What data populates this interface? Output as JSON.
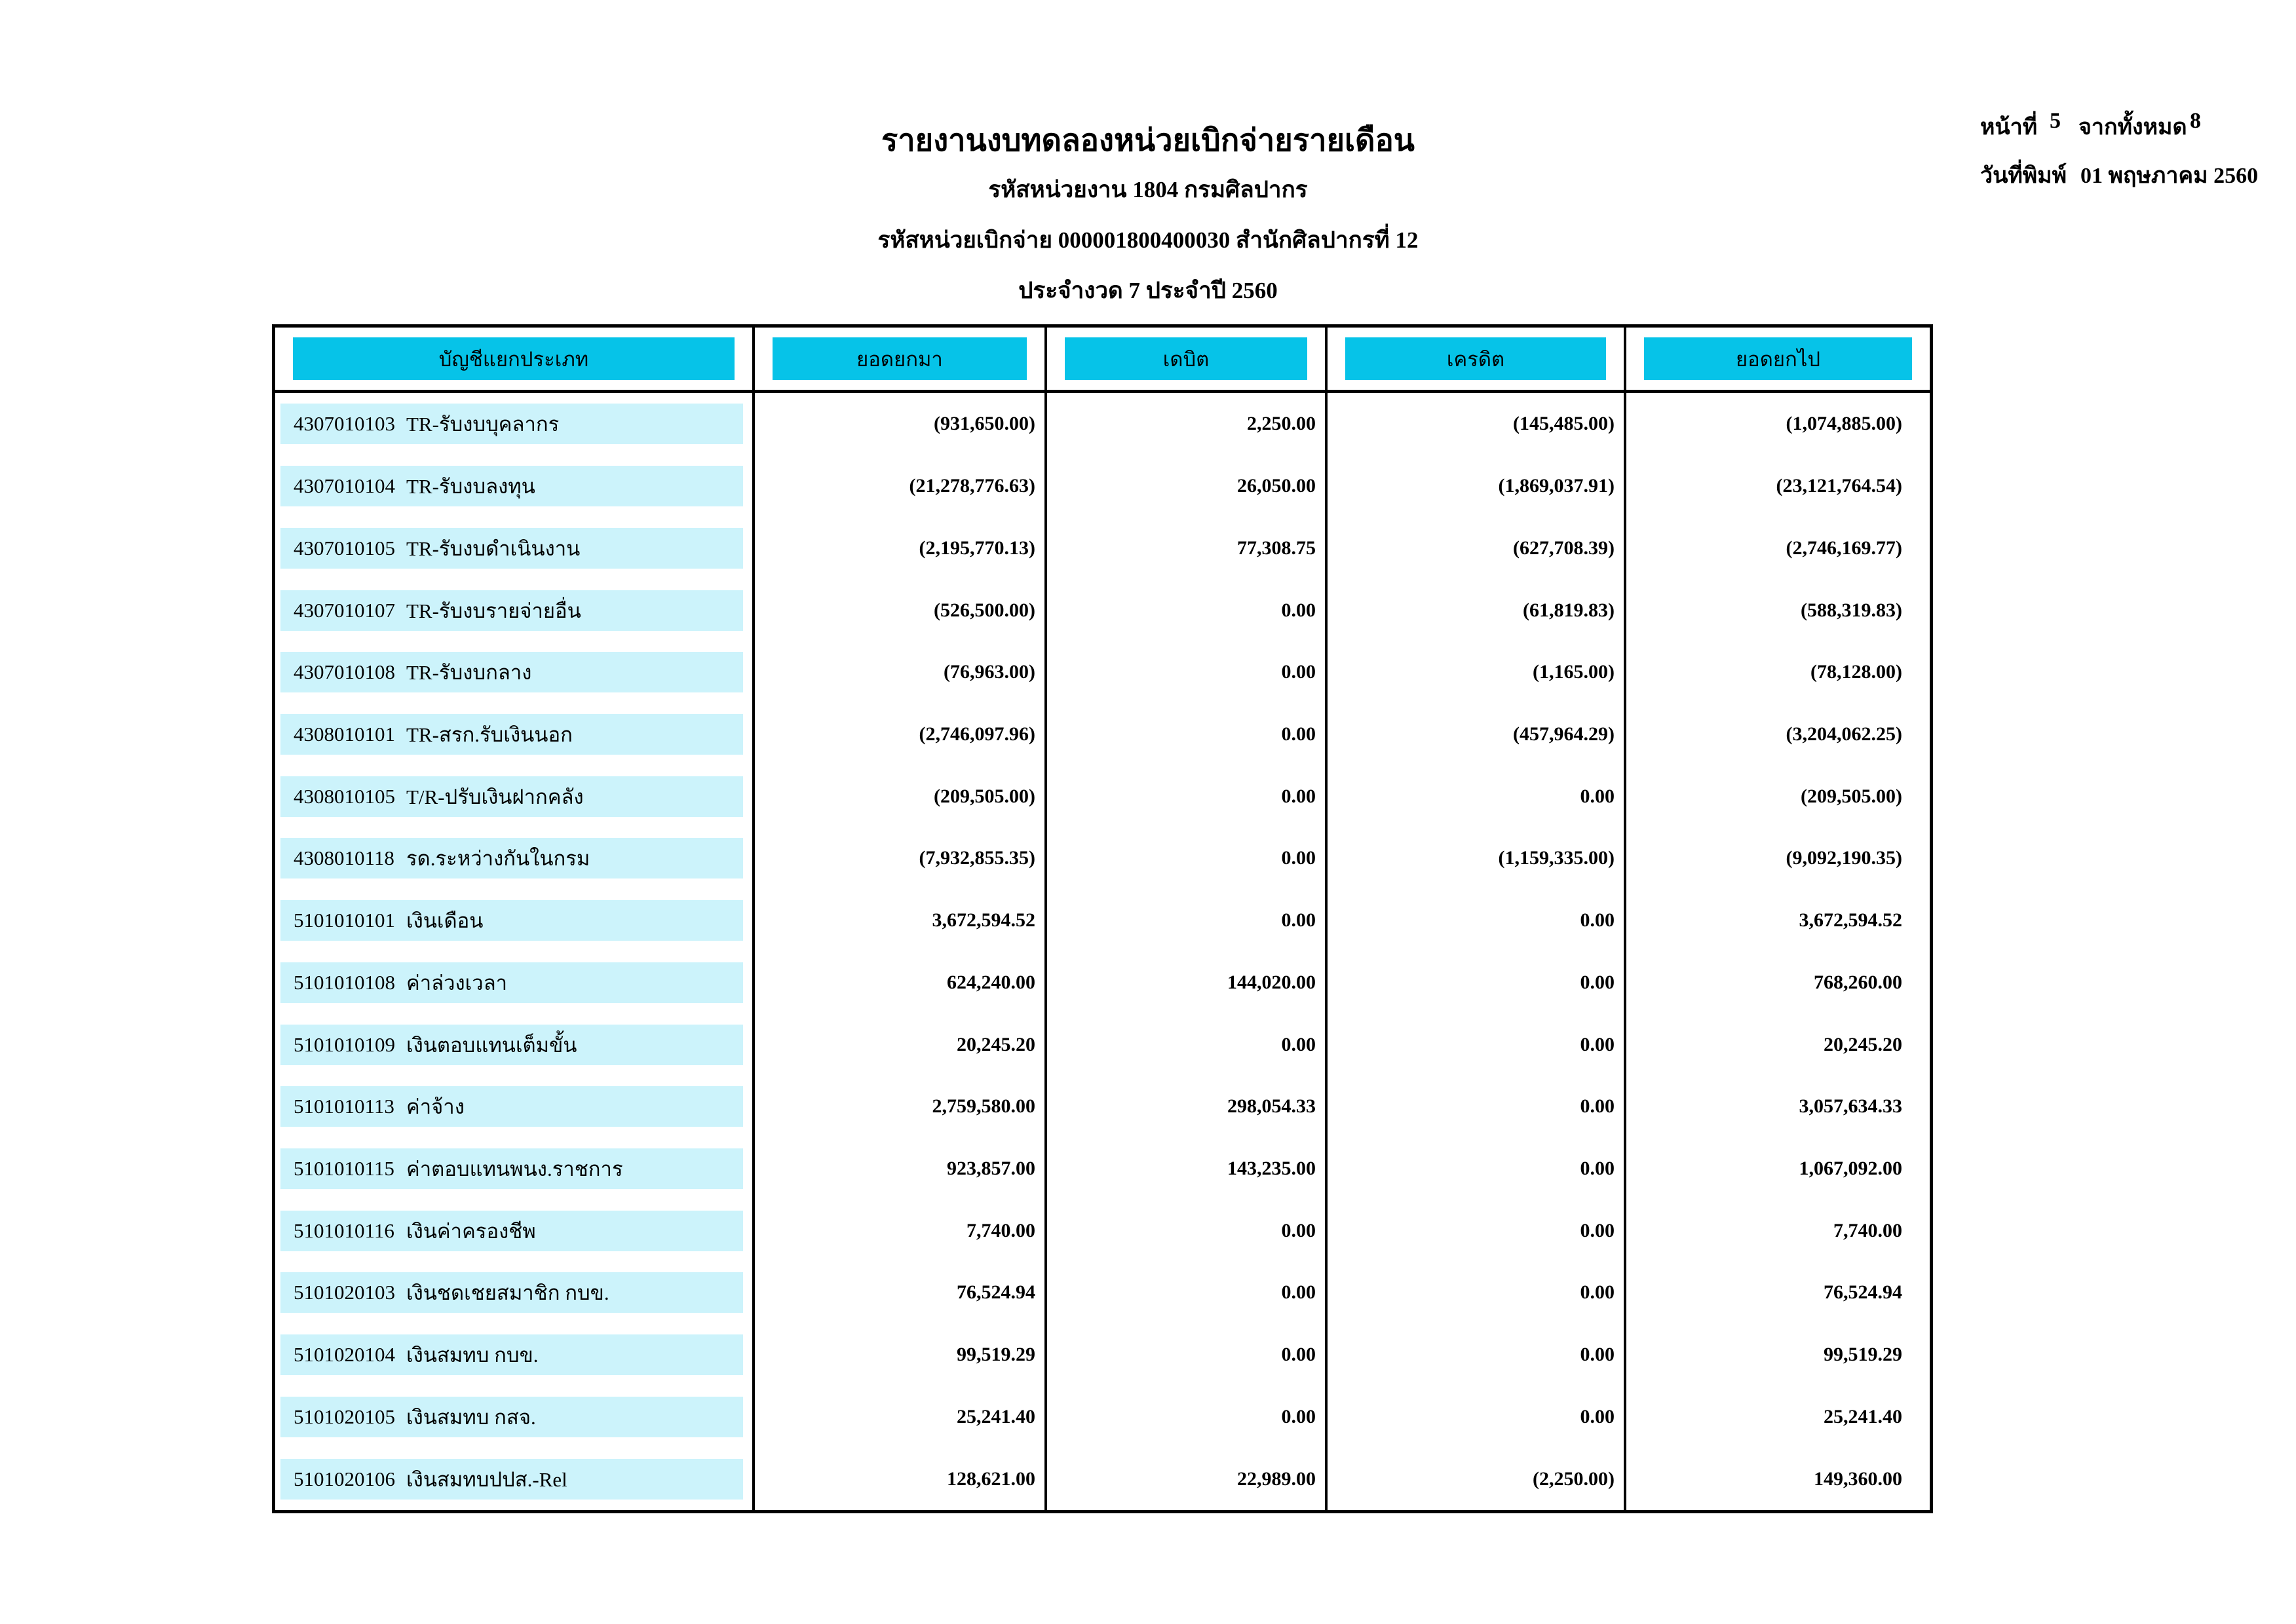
{
  "header": {
    "title": "รายงานงบทดลองหน่วยเบิกจ่ายรายเดือน",
    "agency_line": "รหัสหน่วยงาน 1804 กรมศิลปากร",
    "disbursement_line": "รหัสหน่วยเบิกจ่าย 000001800400030 สำนักศิลปากรที่ 12",
    "period_line": "ประจำงวด 7 ประจำปี 2560"
  },
  "page_info": {
    "page_label": "หน้าที่",
    "page_number": "5",
    "total_label": "จากทั้งหมด",
    "total_pages": "8",
    "print_date_label": "วันที่พิมพ์",
    "print_date": "01 พฤษภาคม 2560"
  },
  "table": {
    "columns": [
      "บัญชีแยกประเภท",
      "ยอดยกมา",
      "เดบิต",
      "เครดิต",
      "ยอดยกไป"
    ],
    "rows": [
      {
        "code": "4307010103",
        "name": "TR-รับงบบุคลากร",
        "opening": "(931,650.00)",
        "debit": "2,250.00",
        "credit": "(145,485.00)",
        "closing": "(1,074,885.00)"
      },
      {
        "code": "4307010104",
        "name": "TR-รับงบลงทุน",
        "opening": "(21,278,776.63)",
        "debit": "26,050.00",
        "credit": "(1,869,037.91)",
        "closing": "(23,121,764.54)"
      },
      {
        "code": "4307010105",
        "name": "TR-รับงบดำเนินงาน",
        "opening": "(2,195,770.13)",
        "debit": "77,308.75",
        "credit": "(627,708.39)",
        "closing": "(2,746,169.77)"
      },
      {
        "code": "4307010107",
        "name": "TR-รับงบรายจ่ายอื่น",
        "opening": "(526,500.00)",
        "debit": "0.00",
        "credit": "(61,819.83)",
        "closing": "(588,319.83)"
      },
      {
        "code": "4307010108",
        "name": "TR-รับงบกลาง",
        "opening": "(76,963.00)",
        "debit": "0.00",
        "credit": "(1,165.00)",
        "closing": "(78,128.00)"
      },
      {
        "code": "4308010101",
        "name": "TR-สรก.รับเงินนอก",
        "opening": "(2,746,097.96)",
        "debit": "0.00",
        "credit": "(457,964.29)",
        "closing": "(3,204,062.25)"
      },
      {
        "code": "4308010105",
        "name": "T/R-ปรับเงินฝากคลัง",
        "opening": "(209,505.00)",
        "debit": "0.00",
        "credit": "0.00",
        "closing": "(209,505.00)"
      },
      {
        "code": "4308010118",
        "name": "รด.ระหว่างกันในกรม",
        "opening": "(7,932,855.35)",
        "debit": "0.00",
        "credit": "(1,159,335.00)",
        "closing": "(9,092,190.35)"
      },
      {
        "code": "5101010101",
        "name": "เงินเดือน",
        "opening": "3,672,594.52",
        "debit": "0.00",
        "credit": "0.00",
        "closing": "3,672,594.52"
      },
      {
        "code": "5101010108",
        "name": "ค่าล่วงเวลา",
        "opening": "624,240.00",
        "debit": "144,020.00",
        "credit": "0.00",
        "closing": "768,260.00"
      },
      {
        "code": "5101010109",
        "name": "เงินตอบแทนเต็มขั้น",
        "opening": "20,245.20",
        "debit": "0.00",
        "credit": "0.00",
        "closing": "20,245.20"
      },
      {
        "code": "5101010113",
        "name": "ค่าจ้าง",
        "opening": "2,759,580.00",
        "debit": "298,054.33",
        "credit": "0.00",
        "closing": "3,057,634.33"
      },
      {
        "code": "5101010115",
        "name": "ค่าตอบแทนพนง.ราชการ",
        "opening": "923,857.00",
        "debit": "143,235.00",
        "credit": "0.00",
        "closing": "1,067,092.00"
      },
      {
        "code": "5101010116",
        "name": "เงินค่าครองชีพ",
        "opening": "7,740.00",
        "debit": "0.00",
        "credit": "0.00",
        "closing": "7,740.00"
      },
      {
        "code": "5101020103",
        "name": "เงินชดเชยสมาชิก กบข.",
        "opening": "76,524.94",
        "debit": "0.00",
        "credit": "0.00",
        "closing": "76,524.94"
      },
      {
        "code": "5101020104",
        "name": "เงินสมทบ กบข.",
        "opening": "99,519.29",
        "debit": "0.00",
        "credit": "0.00",
        "closing": "99,519.29"
      },
      {
        "code": "5101020105",
        "name": "เงินสมทบ กสจ.",
        "opening": "25,241.40",
        "debit": "0.00",
        "credit": "0.00",
        "closing": "25,241.40"
      },
      {
        "code": "5101020106",
        "name": "เงินสมทบปปส.-Rel",
        "opening": "128,621.00",
        "debit": "22,989.00",
        "credit": "(2,250.00)",
        "closing": "149,360.00"
      }
    ]
  },
  "colors": {
    "header_bg": "#06c3e8",
    "row_band_bg": "#ccf3fb",
    "border": "#000000",
    "page_bg": "#ffffff"
  }
}
